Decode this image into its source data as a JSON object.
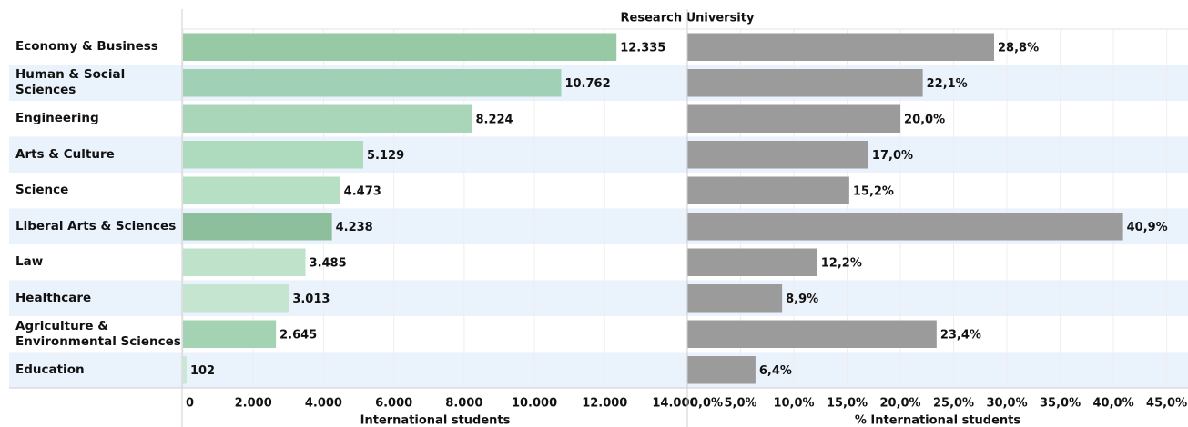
{
  "title": "Research University",
  "chart_data": [
    {
      "type": "bar",
      "orientation": "horizontal",
      "categories": [
        "Economy & Business",
        "Human & Social Sciences",
        "Engineering",
        "Arts & Culture",
        "Science",
        "Liberal Arts & Sciences",
        "Law",
        "Healthcare",
        "Agriculture & Environmental Sciences",
        "Education"
      ],
      "values": [
        12335,
        10762,
        8224,
        5129,
        4473,
        4238,
        3485,
        3013,
        2645,
        102
      ],
      "value_labels": [
        "12.335",
        "10.762",
        "8.224",
        "5.129",
        "4.473",
        "4.238",
        "3.485",
        "3.013",
        "2.645",
        "102"
      ],
      "colors": [
        "#97c9a5",
        "#a0d0b5",
        "#a9d6b8",
        "#aedbbe",
        "#b7dfc3",
        "#8dbf9c",
        "#bfe2ca",
        "#c6e5d1",
        "#a3d3b2",
        "#c9e8d3"
      ],
      "x_label": "International students",
      "xlim": [
        0,
        14350
      ],
      "xticks": [
        0,
        {
          "value": 2000,
          "label": "2.000"
        },
        {
          "value": 4000,
          "label": "4.000"
        },
        {
          "value": 6000,
          "label": "6.000"
        },
        {
          "value": 8000,
          "label": "8.000"
        },
        {
          "value": 10000,
          "label": "10.000"
        },
        {
          "value": 12000,
          "label": "12.000"
        },
        {
          "value": 14000,
          "label": "14.000"
        }
      ],
      "grid": true
    },
    {
      "type": "bar",
      "orientation": "horizontal",
      "values": [
        28.8,
        22.1,
        20.0,
        17.0,
        15.2,
        40.9,
        12.2,
        8.9,
        23.4,
        6.4
      ],
      "value_labels": [
        "28,8%",
        "22,1%",
        "20,0%",
        "17,0%",
        "15,2%",
        "40,9%",
        "12,2%",
        "8,9%",
        "23,4%",
        "6,4%"
      ],
      "color": "#9b9b9b",
      "x_label": "% International students",
      "xlim": [
        0,
        47
      ],
      "xticks": [
        {
          "value": 0,
          "label": "0,0%"
        },
        {
          "value": 5,
          "label": "5,0%"
        },
        {
          "value": 10,
          "label": "10,0%"
        },
        {
          "value": 15,
          "label": "15,0%"
        },
        {
          "value": 20,
          "label": "20,0%"
        },
        {
          "value": 25,
          "label": "25,0%"
        },
        {
          "value": 30,
          "label": "30,0%"
        },
        {
          "value": 35,
          "label": "35,0%"
        },
        {
          "value": 40,
          "label": "40,0%"
        },
        {
          "value": 45,
          "label": "45,0%"
        }
      ],
      "grid": true
    }
  ]
}
